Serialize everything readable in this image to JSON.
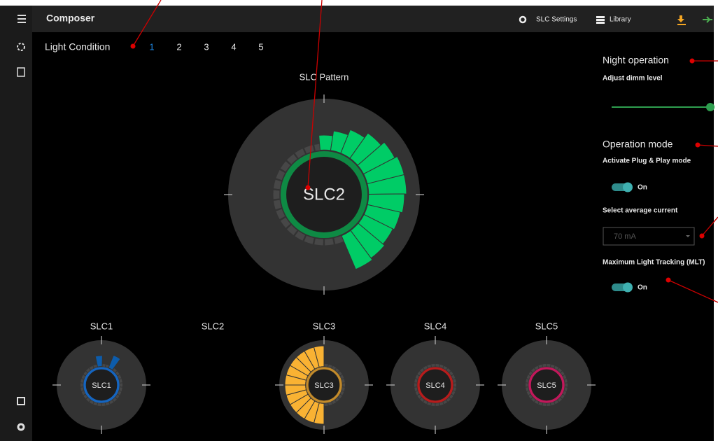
{
  "header": {
    "title": "Composer",
    "actions": [
      "SLC Settings",
      "Library"
    ]
  },
  "light_condition": {
    "label": "Light Condition",
    "options": [
      "1",
      "2",
      "3",
      "4",
      "5"
    ]
  },
  "pattern": {
    "title": "SLC Pattern",
    "center_label": "SLC2"
  },
  "slcs": [
    {
      "name": "SLC1",
      "center_label": "SLC1"
    },
    {
      "name": "SLC2"
    },
    {
      "name": "SLC3",
      "center_label": "SLC3"
    },
    {
      "name": "SLC4",
      "center_label": "SLC4"
    },
    {
      "name": "SLC5",
      "center_label": "SLC5"
    }
  ],
  "settings": {
    "night_operation": {
      "title": "Night operation",
      "subtitle": "Adjust dimm level"
    },
    "operation_mode": {
      "title": "Operation mode",
      "plug_play_label": "Activate Plug & Play mode",
      "plug_play_state": "On",
      "current_label": "Select average current",
      "current_value": "70 mA",
      "mlt_label": "Maximum Light Tracking (MLT)",
      "mlt_state": "On"
    }
  }
}
